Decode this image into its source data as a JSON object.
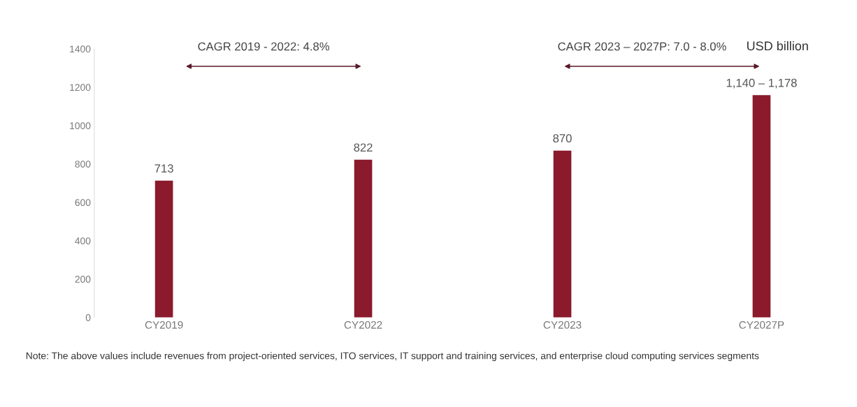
{
  "chart_data": {
    "type": "bar",
    "categories": [
      "CY2019",
      "CY2022",
      "CY2023",
      "CY2027P"
    ],
    "values": [
      713,
      822,
      870,
      1159
    ],
    "value_labels": [
      "713",
      "822",
      "870",
      null
    ],
    "color": "#8a1a2c",
    "ylim": [
      0,
      1400
    ],
    "yticks": [
      0,
      200,
      400,
      600,
      800,
      1000,
      1200,
      1400
    ],
    "grid": false,
    "legend": false,
    "annotations": [
      "CAGR 2019 - 2022: 4.8%",
      "CAGR 2023 – 2027P: 7.0 - 8.0%",
      "USD billion",
      {
        "text": "1,140 – 1,178",
        "x": "CY2027P",
        "y": 1159
      },
      "Note: The above values include revenues from project-oriented services, ITO services, IT support and training services, and enterprise cloud computing services segments"
    ]
  }
}
